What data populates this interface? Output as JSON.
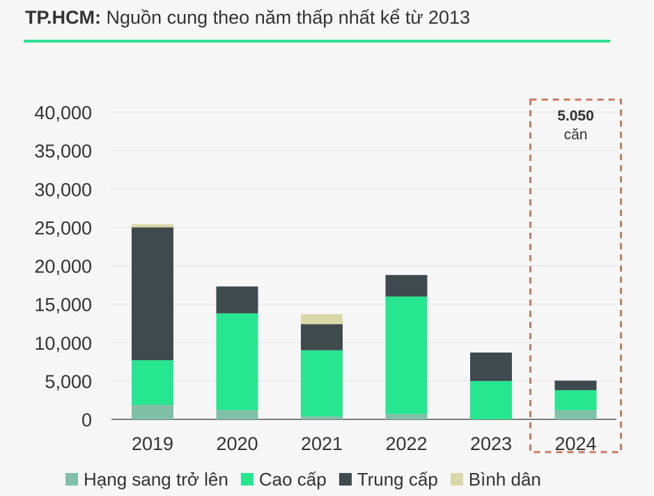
{
  "header": {
    "title_bold": "TP.HCM:",
    "title_rest": "Nguồn cung theo năm thấp nhất kể từ 2013"
  },
  "colors": {
    "accent": "#2ee08f",
    "hang_sang": "#80c0a8",
    "cao_cap": "#27e690",
    "trung_cap": "#3e4a4e",
    "binh_dan": "#d9d8a8",
    "highlight_box": "#c87a62",
    "axis": "#555555"
  },
  "chart_data": {
    "type": "bar",
    "stacked": true,
    "title": "TP.HCM: Nguồn cung theo năm thấp nhất kể từ 2013",
    "xlabel": "",
    "ylabel": "",
    "categories": [
      "2019",
      "2020",
      "2021",
      "2022",
      "2023",
      "2024"
    ],
    "ylim": [
      0,
      40000
    ],
    "yticks": [
      0,
      5000,
      10000,
      15000,
      20000,
      25000,
      30000,
      35000,
      40000
    ],
    "ytick_labels": [
      "0",
      "5,000",
      "10,000",
      "15,000",
      "20,000",
      "25,000",
      "30,000",
      "35,000",
      "40,000"
    ],
    "grid": true,
    "legend_position": "bottom",
    "series": [
      {
        "name": "Hạng sang trở lên",
        "color_key": "hang_sang",
        "values": [
          1900,
          1200,
          400,
          700,
          0,
          1200
        ]
      },
      {
        "name": "Cao cấp",
        "color_key": "cao_cap",
        "values": [
          5800,
          12600,
          8600,
          15300,
          5000,
          2600
        ]
      },
      {
        "name": "Trung cấp",
        "color_key": "trung_cap",
        "values": [
          17300,
          3500,
          3400,
          2800,
          3700,
          1250
        ]
      },
      {
        "name": "Bình dân",
        "color_key": "binh_dan",
        "values": [
          400,
          0,
          1300,
          0,
          0,
          0
        ]
      }
    ],
    "annotation": {
      "category": "2024",
      "value_text": "5.050",
      "unit_text": "căn"
    }
  }
}
